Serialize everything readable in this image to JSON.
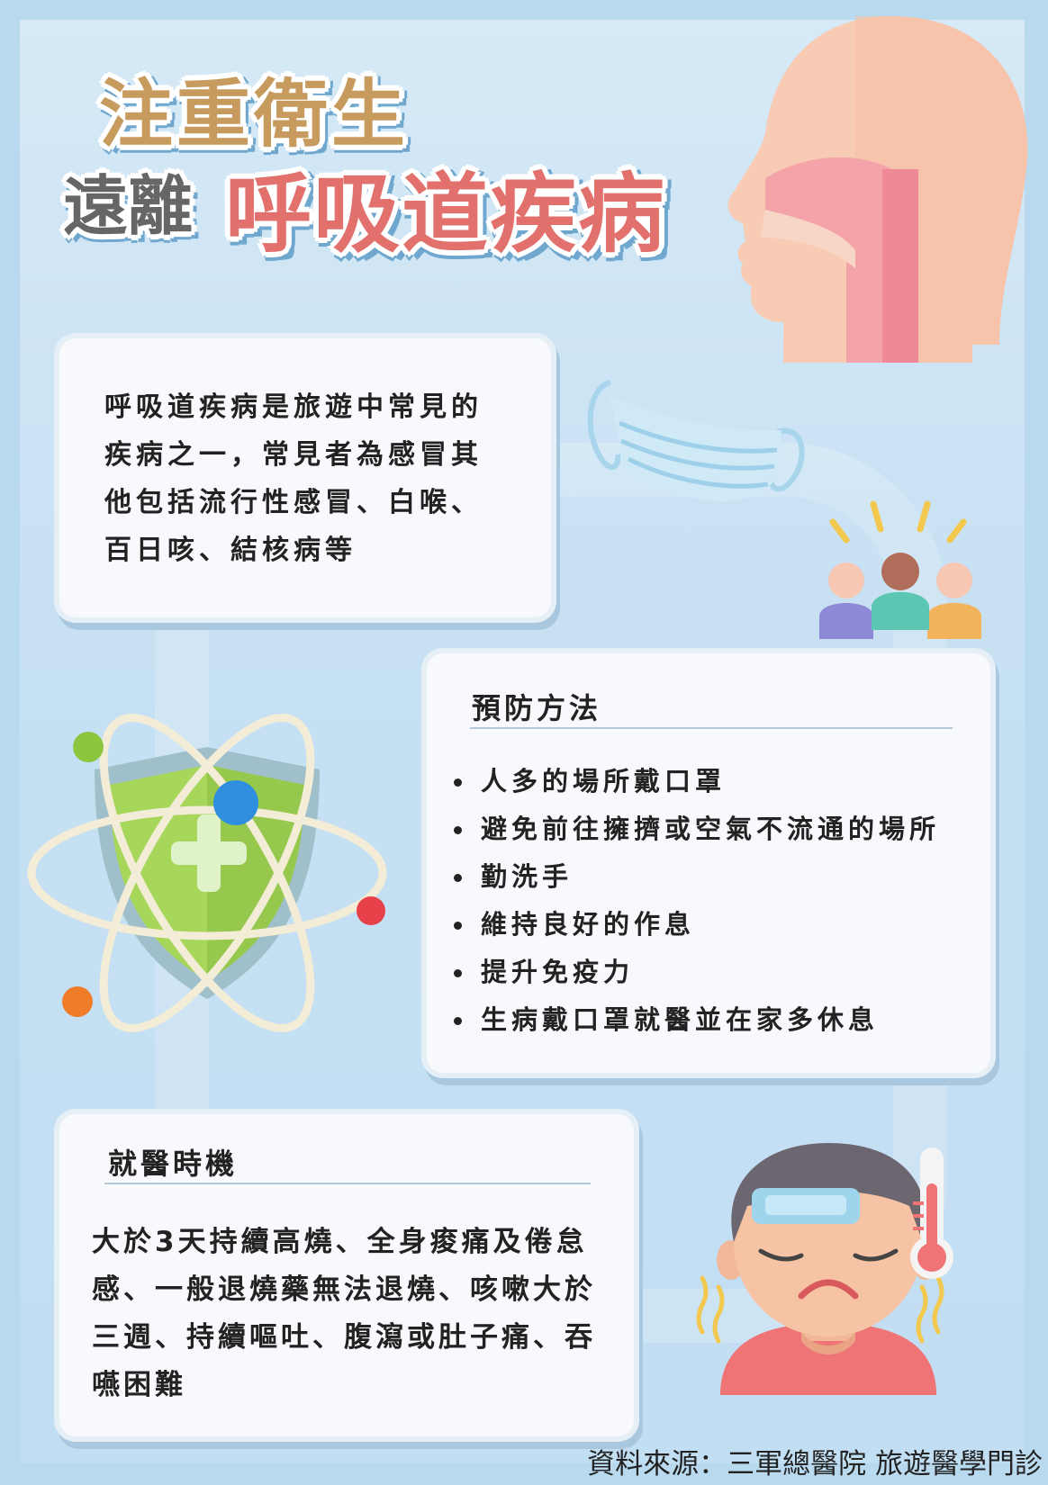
{
  "title": {
    "line1": "注重衛生",
    "line2_prefix": "遠離",
    "line2_highlight": "呼吸道疾病"
  },
  "intro": {
    "text": "呼吸道疾病是旅遊中常見的疾病之一，常見者為感冒其他包括流行性感冒、白喉、百日咳、結核病等"
  },
  "prevention": {
    "heading": "預防方法",
    "items": [
      "人多的場所戴口罩",
      "避免前往擁擠或空氣不流通的場所",
      "勤洗手",
      "維持良好的作息",
      "提升免疫力",
      "生病戴口罩就醫並在家多休息"
    ]
  },
  "visit": {
    "heading": "就醫時機",
    "text": "大於3天持續高燒、全身痠痛及倦怠感、一般退燒藥無法退燒、咳嗽大於三週、持續嘔吐、腹瀉或肚子痛、吞嚥困難"
  },
  "source": "資料來源：三軍總醫院 旅遊醫學門診",
  "icons": [
    "head-airway-icon",
    "face-mask-icon",
    "crowd-icon",
    "shield-atom-icon",
    "sick-person-icon",
    "thermometer-icon"
  ],
  "colors": {
    "background": "#c2def3",
    "title_gold": "#c79a5e",
    "title_red": "#e2706d",
    "title_gray": "#666666"
  }
}
